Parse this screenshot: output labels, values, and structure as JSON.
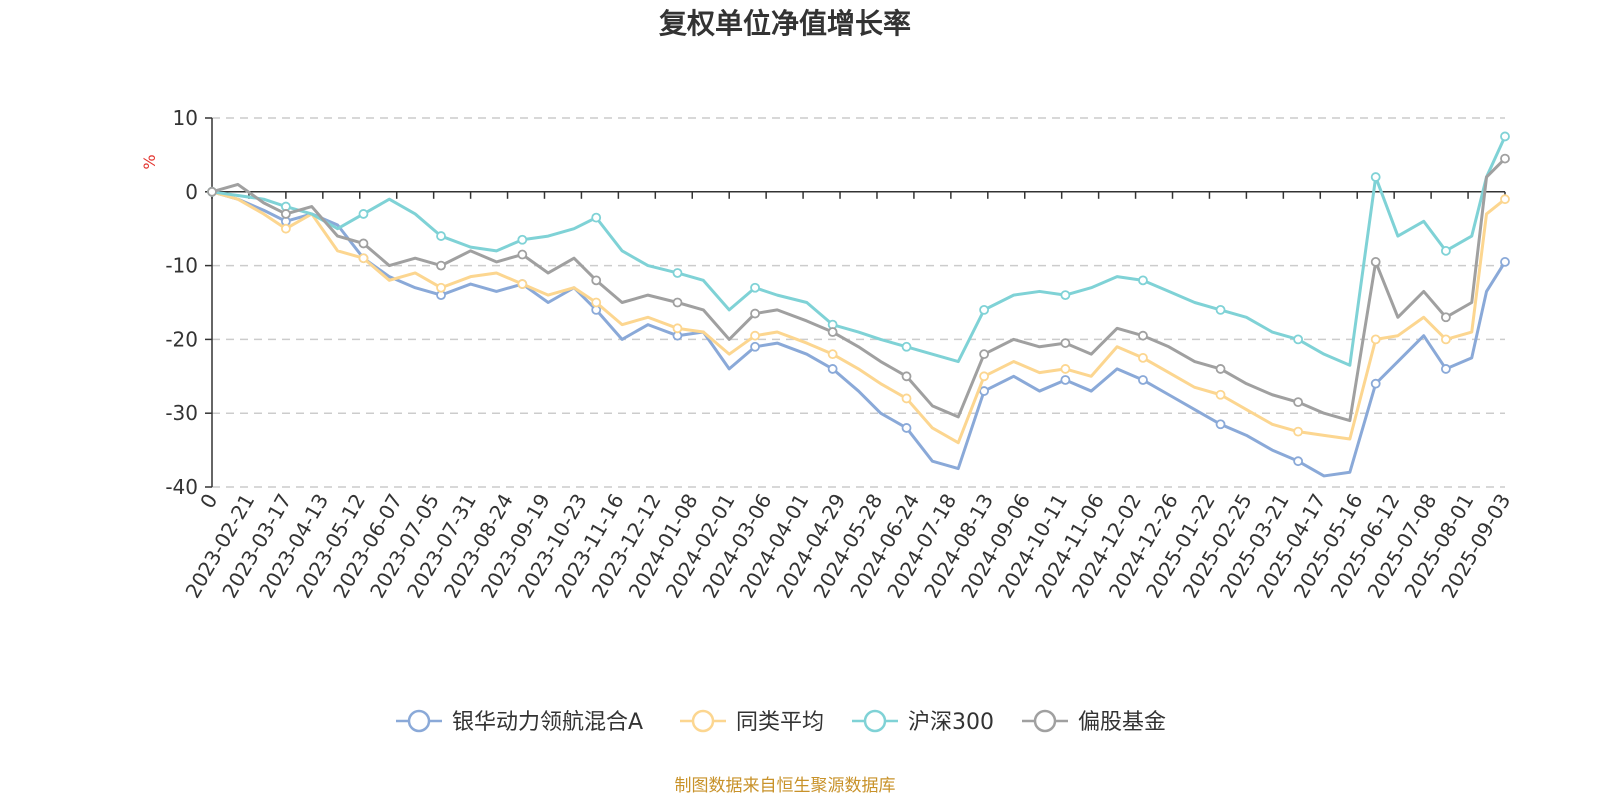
{
  "chart_data": {
    "type": "line",
    "title": "复权单位净值增长率",
    "y_unit_label": "%",
    "source": "制图数据来自恒生聚源数据库",
    "ylim": [
      -40,
      10
    ],
    "y_ticks": [
      10,
      0,
      -10,
      -20,
      -30,
      -40
    ],
    "grid": true,
    "legend_position": "bottom",
    "x_labels": [
      "0",
      "2023-02-21",
      "2023-03-17",
      "2023-04-13",
      "2023-05-12",
      "2023-06-07",
      "2023-07-05",
      "2023-07-31",
      "2023-08-24",
      "2023-09-19",
      "2023-10-23",
      "2023-11-16",
      "2023-12-12",
      "2024-01-08",
      "2024-02-01",
      "2024-03-06",
      "2024-04-01",
      "2024-04-29",
      "2024-05-28",
      "2024-06-24",
      "2024-07-18",
      "2024-08-13",
      "2024-09-06",
      "2024-10-11",
      "2024-11-06",
      "2024-12-02",
      "2024-12-26",
      "2025-01-22",
      "2025-02-25",
      "2025-03-21",
      "2025-04-17",
      "2025-05-16",
      "2025-06-12",
      "2025-07-08",
      "2025-08-01",
      "2025-09-03"
    ],
    "x_positions": [
      0,
      0.7,
      1.4,
      2.0,
      2.7,
      3.4,
      4.1,
      4.8,
      5.5,
      6.2,
      7.0,
      7.7,
      8.4,
      9.1,
      9.8,
      10.4,
      11.1,
      11.8,
      12.6,
      13.3,
      14.0,
      14.7,
      15.3,
      16.1,
      16.8,
      17.5,
      18.1,
      18.8,
      19.5,
      20.2,
      20.9,
      21.7,
      22.4,
      23.1,
      23.8,
      24.5,
      25.2,
      25.9,
      26.6,
      27.3,
      28.0,
      28.7,
      29.4,
      30.1,
      30.8,
      31.5,
      32.1,
      32.8,
      33.4,
      34.1,
      34.5,
      35.0
    ],
    "series": [
      {
        "name": "银华动力领航混合A",
        "color": "#8aa9d8",
        "values": [
          0,
          -1,
          -2.5,
          -4,
          -3,
          -4.5,
          -9,
          -11.5,
          -13,
          -14,
          -12.5,
          -13.5,
          -12.5,
          -15,
          -13,
          -16,
          -20,
          -18,
          -19.5,
          -19,
          -24,
          -21,
          -20.5,
          -22,
          -24,
          -27,
          -30,
          -32,
          -36.5,
          -37.5,
          -27,
          -25,
          -27,
          -25.5,
          -27,
          -24,
          -25.5,
          -27.5,
          -29.5,
          -31.5,
          -33,
          -35,
          -36.5,
          -38.5,
          -38,
          -26,
          -23,
          -19.5,
          -24,
          -22.5,
          -13.5,
          -9.5
        ]
      },
      {
        "name": "同类平均",
        "color": "#fcd690",
        "values": [
          0,
          -1,
          -3,
          -5,
          -3,
          -8,
          -9,
          -12,
          -11,
          -13,
          -11.5,
          -11,
          -12.5,
          -14,
          -13,
          -15,
          -18,
          -17,
          -18.5,
          -19,
          -22,
          -19.5,
          -19,
          -20.5,
          -22,
          -24,
          -26,
          -28,
          -32,
          -34,
          -25,
          -23,
          -24.5,
          -24,
          -25,
          -21,
          -22.5,
          -24.5,
          -26.5,
          -27.5,
          -29.5,
          -31.5,
          -32.5,
          -33,
          -33.5,
          -20,
          -19.5,
          -17,
          -20,
          -19,
          -3,
          -1
        ]
      },
      {
        "name": "沪深300",
        "color": "#7fd2d6",
        "values": [
          0,
          -0.5,
          -1,
          -2,
          -3,
          -5,
          -3,
          -1,
          -3,
          -6,
          -7.5,
          -8,
          -6.5,
          -6,
          -5,
          -3.5,
          -8,
          -10,
          -11,
          -12,
          -16,
          -13,
          -14,
          -15,
          -18,
          -19,
          -20,
          -21,
          -22,
          -23,
          -16,
          -14,
          -13.5,
          -14,
          -13,
          -11.5,
          -12,
          -13.5,
          -15,
          -16,
          -17,
          -19,
          -20,
          -22,
          -23.5,
          2,
          -6,
          -4,
          -8,
          -6,
          2,
          7.5
        ]
      },
      {
        "name": "偏股基金",
        "color": "#a0a0a0",
        "values": [
          0,
          1,
          -1.5,
          -3,
          -2,
          -6,
          -7,
          -10,
          -9,
          -10,
          -8,
          -9.5,
          -8.5,
          -11,
          -9,
          -12,
          -15,
          -14,
          -15,
          -16,
          -20,
          -16.5,
          -16,
          -17.5,
          -19,
          -21,
          -23,
          -25,
          -29,
          -30.5,
          -22,
          -20,
          -21,
          -20.5,
          -22,
          -18.5,
          -19.5,
          -21,
          -23,
          -24,
          -26,
          -27.5,
          -28.5,
          -30,
          -31,
          -9.5,
          -17,
          -13.5,
          -17,
          -15,
          2,
          4.5
        ]
      }
    ]
  }
}
